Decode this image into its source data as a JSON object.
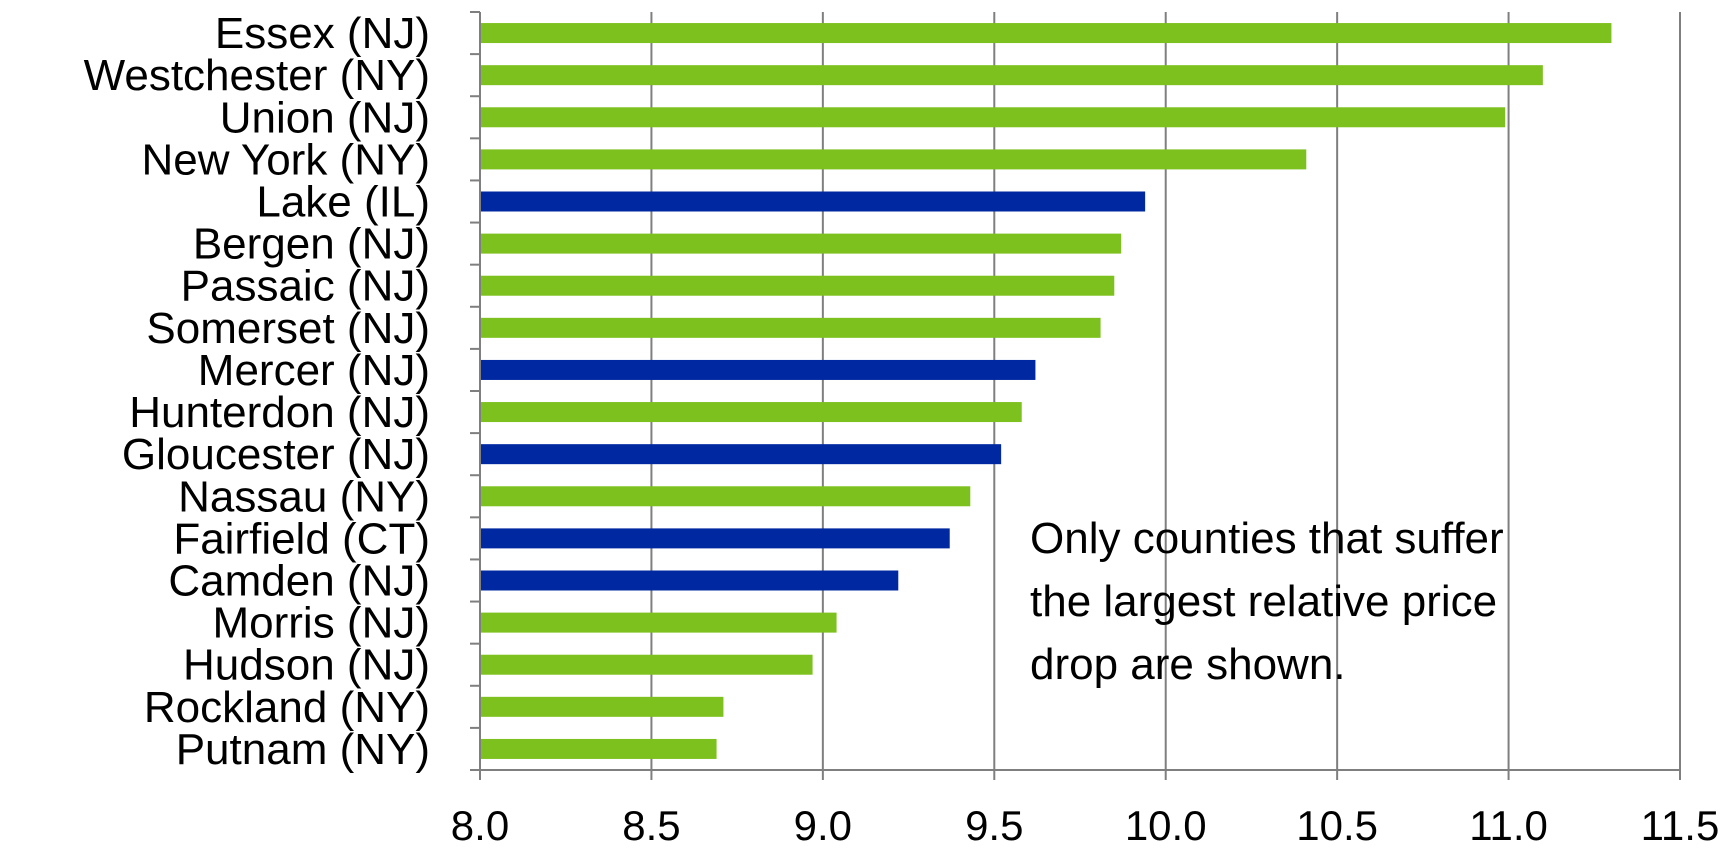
{
  "chart_data": {
    "type": "bar",
    "orientation": "horizontal",
    "title": "",
    "xlabel": "",
    "ylabel": "",
    "xlim": [
      8.0,
      11.5
    ],
    "x_ticks": [
      "8.0",
      "8.5",
      "9.0",
      "9.5",
      "10.0",
      "10.5",
      "11.0",
      "11.5"
    ],
    "x_tick_values": [
      8.0,
      8.5,
      9.0,
      9.5,
      10.0,
      10.5,
      11.0,
      11.5
    ],
    "grid": "vertical",
    "colors": {
      "green": "#7dc11f",
      "blue": "#0028a0"
    },
    "categories": [
      "Essex (NJ)",
      "Westchester (NY)",
      "Union (NJ)",
      "New York (NY)",
      "Lake (IL)",
      "Bergen (NJ)",
      "Passaic (NJ)",
      "Somerset (NJ)",
      "Mercer (NJ)",
      "Hunterdon (NJ)",
      "Gloucester (NJ)",
      "Nassau (NY)",
      "Fairfield (CT)",
      "Camden (NJ)",
      "Morris (NJ)",
      "Hudson (NJ)",
      "Rockland (NY)",
      "Putnam (NY)"
    ],
    "values": [
      11.3,
      11.1,
      10.99,
      10.41,
      9.94,
      9.87,
      9.85,
      9.81,
      9.62,
      9.58,
      9.52,
      9.43,
      9.37,
      9.22,
      9.04,
      8.97,
      8.71,
      8.69
    ],
    "bar_colors": [
      "green",
      "green",
      "green",
      "green",
      "blue",
      "green",
      "green",
      "green",
      "blue",
      "green",
      "blue",
      "green",
      "blue",
      "blue",
      "green",
      "green",
      "green",
      "green"
    ],
    "annotation": [
      "Only counties that suffer",
      "the largest relative price",
      "drop are shown."
    ]
  }
}
